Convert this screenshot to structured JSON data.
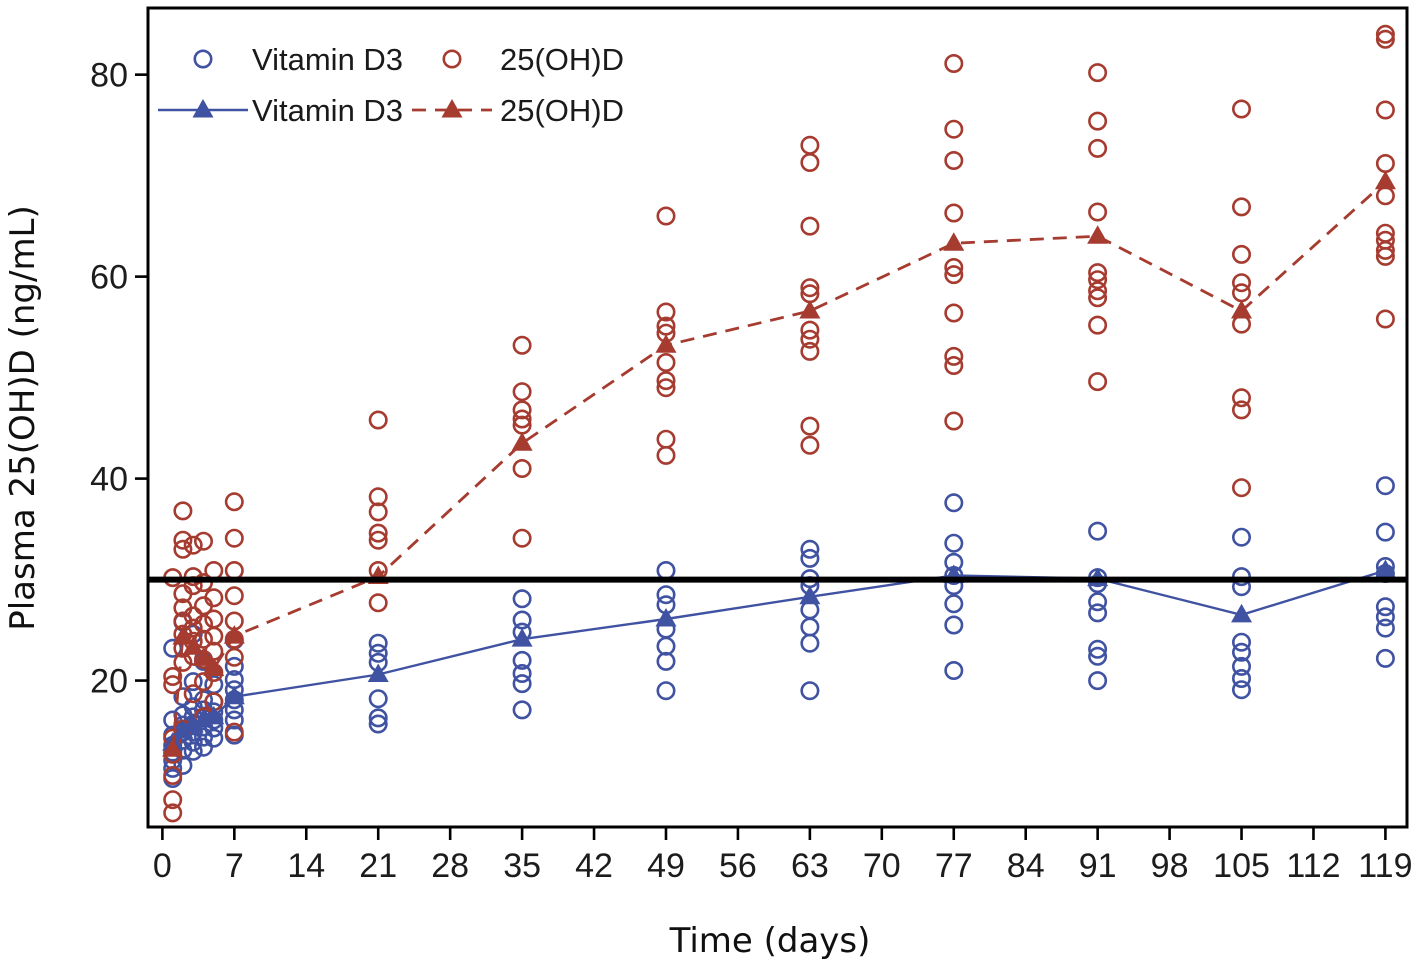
{
  "figure": {
    "kind": "scatter plot with group means",
    "background": "#ffffff",
    "border_color": "#000000",
    "text_color": "#1a1a1a"
  },
  "legend": {
    "rows": [
      {
        "items": [
          {
            "label": "Vitamin D3",
            "marker": "open-circle",
            "color": "#4052a2"
          },
          {
            "label": "25(OH)D",
            "marker": "open-circle",
            "color": "#a63b30"
          }
        ]
      },
      {
        "items": [
          {
            "label": "Vitamin D3",
            "marker": "filled-triangle",
            "line": "solid",
            "color": "#4052a2"
          },
          {
            "label": "25(OH)D",
            "marker": "filled-triangle",
            "line": "dashed",
            "color": "#a63b30"
          }
        ]
      }
    ]
  },
  "chart_data": {
    "type": "scatter",
    "title": "",
    "xlabel": "Time (days)",
    "ylabel": "Plasma 25(OH)D (ng/mL)",
    "x_ticks": [
      0,
      7,
      14,
      21,
      28,
      35,
      42,
      49,
      56,
      63,
      70,
      77,
      84,
      91,
      98,
      105,
      112,
      119
    ],
    "y_ticks": [
      20,
      40,
      60,
      80
    ],
    "xlim": [
      -1.4,
      121.1
    ],
    "ylim": [
      5.5,
      86.6
    ],
    "grid": false,
    "reference_line_y": 30,
    "reference_line_color": "#000000",
    "legend_position": "top-left inside",
    "series": [
      {
        "id": "vitd3_individual",
        "name": "Vitamin D3",
        "role": "individual subjects",
        "marker": "open-circle",
        "color": "#4052a2",
        "points": [
          [
            1,
            23.2
          ],
          [
            1,
            16.1
          ],
          [
            1,
            14.6
          ],
          [
            1,
            13.6
          ],
          [
            1,
            12.9
          ],
          [
            1,
            12.1
          ],
          [
            1,
            11.3
          ],
          [
            1,
            10.3
          ],
          [
            2,
            25.8
          ],
          [
            2,
            18.4
          ],
          [
            2,
            16.6
          ],
          [
            2,
            15.6
          ],
          [
            2,
            14.9
          ],
          [
            2,
            14.1
          ],
          [
            2,
            13.1
          ],
          [
            2,
            11.6
          ],
          [
            3,
            24.6
          ],
          [
            3,
            19.9
          ],
          [
            3,
            17.4
          ],
          [
            3,
            16.4
          ],
          [
            3,
            15.7
          ],
          [
            3,
            14.9
          ],
          [
            3,
            13.9
          ],
          [
            3,
            13.0
          ],
          [
            4,
            21.9
          ],
          [
            4,
            18.1
          ],
          [
            4,
            17.1
          ],
          [
            4,
            16.3
          ],
          [
            4,
            15.4
          ],
          [
            4,
            14.4
          ],
          [
            4,
            13.4
          ],
          [
            5,
            19.6
          ],
          [
            5,
            17.9
          ],
          [
            5,
            16.9
          ],
          [
            5,
            16.1
          ],
          [
            5,
            15.3
          ],
          [
            5,
            14.3
          ],
          [
            7,
            24.0
          ],
          [
            7,
            21.4
          ],
          [
            7,
            20.1
          ],
          [
            7,
            19.1
          ],
          [
            7,
            18.1
          ],
          [
            7,
            17.1
          ],
          [
            7,
            16.1
          ],
          [
            7,
            14.6
          ],
          [
            21,
            23.7
          ],
          [
            21,
            22.7
          ],
          [
            21,
            21.8
          ],
          [
            21,
            18.2
          ],
          [
            21,
            16.3
          ],
          [
            21,
            15.7
          ],
          [
            35,
            28.1
          ],
          [
            35,
            26.0
          ],
          [
            35,
            24.8
          ],
          [
            35,
            22.0
          ],
          [
            35,
            20.7
          ],
          [
            35,
            19.7
          ],
          [
            35,
            17.1
          ],
          [
            49,
            30.9
          ],
          [
            49,
            28.5
          ],
          [
            49,
            27.5
          ],
          [
            49,
            25.1
          ],
          [
            49,
            23.4
          ],
          [
            49,
            21.9
          ],
          [
            49,
            19.0
          ],
          [
            63,
            33.0
          ],
          [
            63,
            32.1
          ],
          [
            63,
            30.1
          ],
          [
            63,
            29.4
          ],
          [
            63,
            27.0
          ],
          [
            63,
            25.3
          ],
          [
            63,
            23.7
          ],
          [
            63,
            19.0
          ],
          [
            77,
            37.6
          ],
          [
            77,
            33.6
          ],
          [
            77,
            31.7
          ],
          [
            77,
            30.4
          ],
          [
            77,
            29.4
          ],
          [
            77,
            27.6
          ],
          [
            77,
            25.5
          ],
          [
            77,
            21.0
          ],
          [
            91,
            34.8
          ],
          [
            91,
            30.2
          ],
          [
            91,
            29.6
          ],
          [
            91,
            27.8
          ],
          [
            91,
            26.7
          ],
          [
            91,
            23.1
          ],
          [
            91,
            22.4
          ],
          [
            91,
            20.0
          ],
          [
            105,
            34.2
          ],
          [
            105,
            30.3
          ],
          [
            105,
            29.3
          ],
          [
            105,
            23.8
          ],
          [
            105,
            22.8
          ],
          [
            105,
            21.4
          ],
          [
            105,
            20.2
          ],
          [
            105,
            19.1
          ],
          [
            119,
            39.3
          ],
          [
            119,
            34.7
          ],
          [
            119,
            31.3
          ],
          [
            119,
            30.6
          ],
          [
            119,
            27.3
          ],
          [
            119,
            26.3
          ],
          [
            119,
            25.2
          ],
          [
            119,
            22.2
          ]
        ]
      },
      {
        "id": "ohd_individual",
        "name": "25(OH)D",
        "role": "individual subjects",
        "marker": "open-circle",
        "color": "#a63b30",
        "points": [
          [
            1,
            30.2
          ],
          [
            1,
            20.4
          ],
          [
            1,
            19.6
          ],
          [
            1,
            14.3
          ],
          [
            1,
            12.7
          ],
          [
            1,
            10.6
          ],
          [
            1,
            8.2
          ],
          [
            1,
            6.9
          ],
          [
            2,
            36.8
          ],
          [
            2,
            33.9
          ],
          [
            2,
            33.0
          ],
          [
            2,
            28.6
          ],
          [
            2,
            27.2
          ],
          [
            2,
            25.9
          ],
          [
            2,
            24.6
          ],
          [
            2,
            23.2
          ],
          [
            2,
            21.8
          ],
          [
            2,
            15.2
          ],
          [
            3,
            33.4
          ],
          [
            3,
            30.3
          ],
          [
            3,
            29.4
          ],
          [
            3,
            26.4
          ],
          [
            3,
            25.2
          ],
          [
            3,
            23.9
          ],
          [
            3,
            22.4
          ],
          [
            3,
            18.7
          ],
          [
            4,
            33.8
          ],
          [
            4,
            29.7
          ],
          [
            4,
            27.4
          ],
          [
            4,
            25.6
          ],
          [
            4,
            24.1
          ],
          [
            4,
            22.1
          ],
          [
            4,
            19.9
          ],
          [
            4,
            16.4
          ],
          [
            5,
            30.9
          ],
          [
            5,
            28.2
          ],
          [
            5,
            26.1
          ],
          [
            5,
            24.4
          ],
          [
            5,
            22.9
          ],
          [
            5,
            20.8
          ],
          [
            5,
            17.9
          ],
          [
            7,
            37.7
          ],
          [
            7,
            34.1
          ],
          [
            7,
            30.9
          ],
          [
            7,
            28.4
          ],
          [
            7,
            25.9
          ],
          [
            7,
            24.1
          ],
          [
            7,
            22.3
          ],
          [
            7,
            14.9
          ],
          [
            21,
            45.8
          ],
          [
            21,
            38.2
          ],
          [
            21,
            36.7
          ],
          [
            21,
            34.6
          ],
          [
            21,
            33.9
          ],
          [
            21,
            30.9
          ],
          [
            21,
            27.7
          ],
          [
            35,
            53.2
          ],
          [
            35,
            48.6
          ],
          [
            35,
            46.8
          ],
          [
            35,
            45.9
          ],
          [
            35,
            45.3
          ],
          [
            35,
            41.0
          ],
          [
            35,
            34.1
          ],
          [
            49,
            66.0
          ],
          [
            49,
            56.5
          ],
          [
            49,
            55.1
          ],
          [
            49,
            54.4
          ],
          [
            49,
            51.5
          ],
          [
            49,
            49.7
          ],
          [
            49,
            49.0
          ],
          [
            49,
            43.9
          ],
          [
            49,
            42.3
          ],
          [
            63,
            73.0
          ],
          [
            63,
            71.3
          ],
          [
            63,
            65.0
          ],
          [
            63,
            58.9
          ],
          [
            63,
            58.3
          ],
          [
            63,
            54.7
          ],
          [
            63,
            53.8
          ],
          [
            63,
            52.6
          ],
          [
            63,
            45.2
          ],
          [
            63,
            43.3
          ],
          [
            77,
            81.1
          ],
          [
            77,
            74.6
          ],
          [
            77,
            71.5
          ],
          [
            77,
            66.3
          ],
          [
            77,
            60.9
          ],
          [
            77,
            60.2
          ],
          [
            77,
            56.4
          ],
          [
            77,
            52.1
          ],
          [
            77,
            51.2
          ],
          [
            77,
            45.7
          ],
          [
            91,
            80.2
          ],
          [
            91,
            75.4
          ],
          [
            91,
            72.7
          ],
          [
            91,
            66.4
          ],
          [
            91,
            60.4
          ],
          [
            91,
            59.7
          ],
          [
            91,
            58.6
          ],
          [
            91,
            57.9
          ],
          [
            91,
            55.2
          ],
          [
            91,
            49.6
          ],
          [
            105,
            76.6
          ],
          [
            105,
            66.9
          ],
          [
            105,
            62.2
          ],
          [
            105,
            59.4
          ],
          [
            105,
            58.4
          ],
          [
            105,
            55.3
          ],
          [
            105,
            48.0
          ],
          [
            105,
            46.8
          ],
          [
            105,
            39.1
          ],
          [
            119,
            84.0
          ],
          [
            119,
            83.5
          ],
          [
            119,
            76.5
          ],
          [
            119,
            71.2
          ],
          [
            119,
            68.0
          ],
          [
            119,
            64.3
          ],
          [
            119,
            63.6
          ],
          [
            119,
            62.6
          ],
          [
            119,
            62.0
          ],
          [
            119,
            55.8
          ]
        ]
      },
      {
        "id": "vitd3_mean",
        "name": "Vitamin D3",
        "role": "mean",
        "marker": "filled-triangle",
        "line": "solid",
        "color": "#4052a2",
        "x": [
          1,
          2,
          3,
          4,
          5,
          7,
          21,
          35,
          49,
          63,
          77,
          91,
          105,
          119
        ],
        "y": [
          13.8,
          15.0,
          15.6,
          16.1,
          16.4,
          18.4,
          20.6,
          24.1,
          26.1,
          28.3,
          30.4,
          30.1,
          26.5,
          30.9
        ]
      },
      {
        "id": "ohd_mean",
        "name": "25(OH)D",
        "role": "mean",
        "marker": "filled-triangle",
        "line": "dashed",
        "color": "#a63b30",
        "x": [
          1,
          2,
          3,
          4,
          5,
          7,
          21,
          35,
          49,
          63,
          77,
          91,
          105,
          119
        ],
        "y": [
          13.2,
          24.3,
          23.3,
          22.2,
          21.2,
          24.4,
          30.3,
          43.5,
          53.2,
          56.6,
          63.3,
          64.0,
          56.6,
          69.4
        ]
      }
    ]
  }
}
